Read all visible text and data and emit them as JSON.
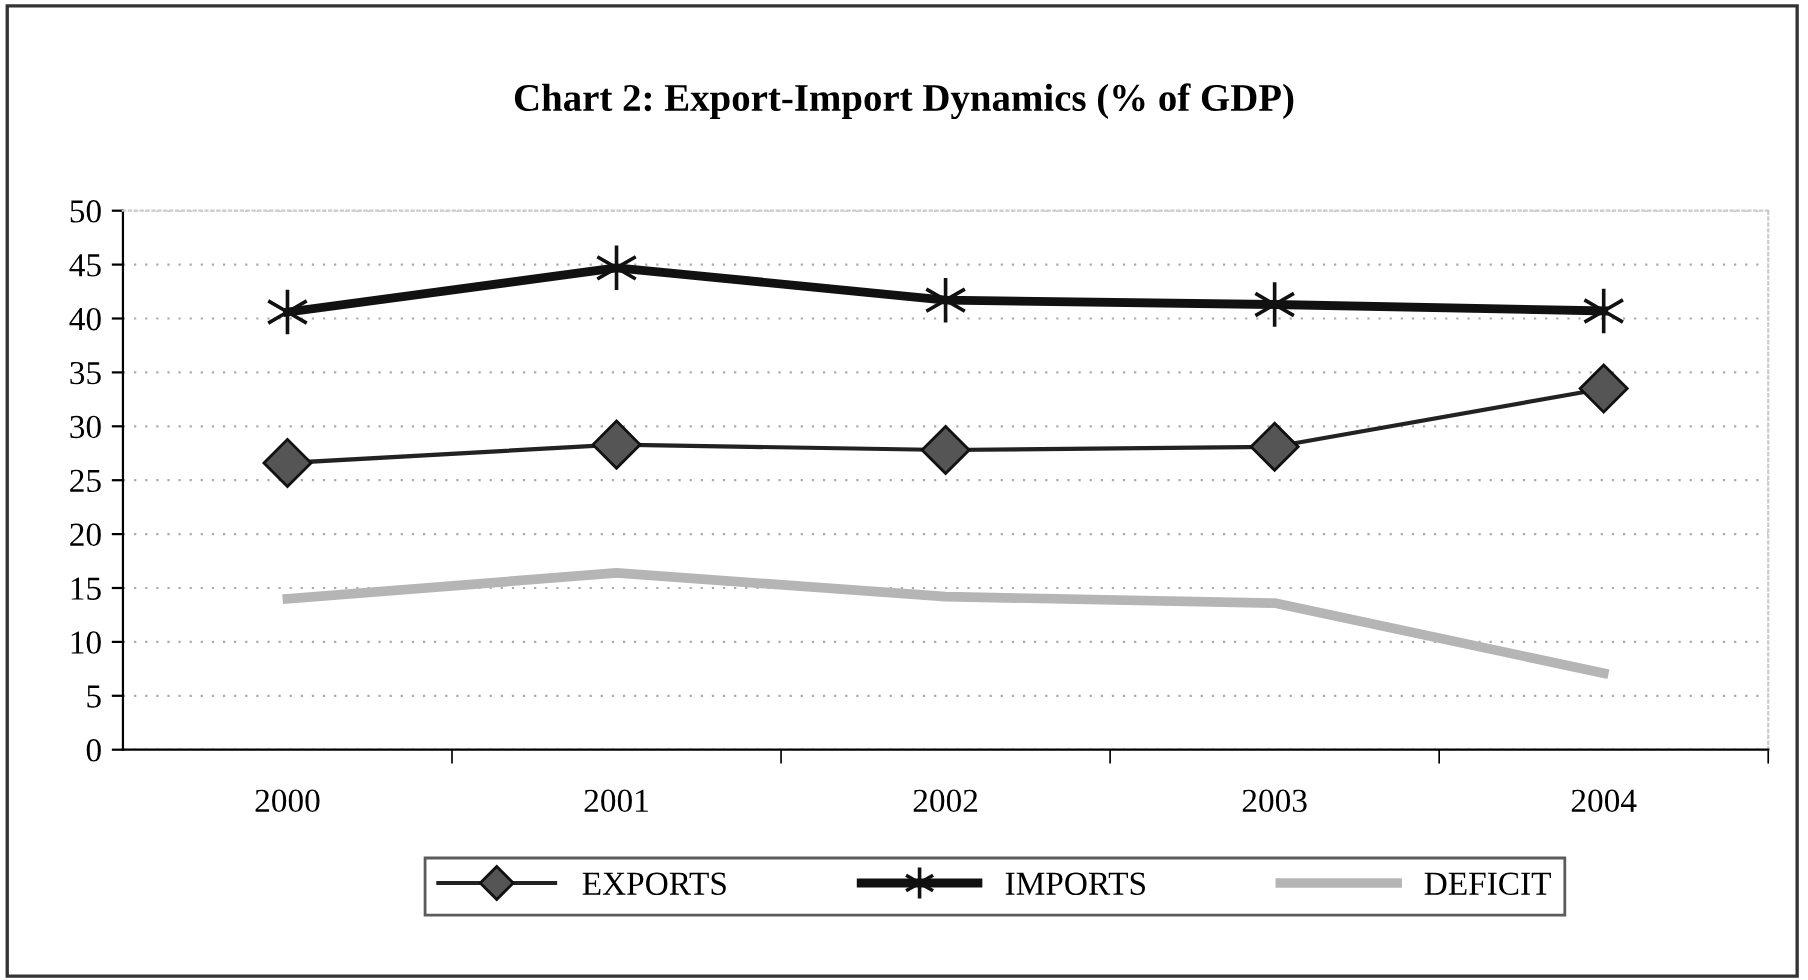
{
  "chart_data": {
    "type": "line",
    "title": "Chart 2: Export-Import Dynamics (% of GDP)",
    "categories": [
      "2000",
      "2001",
      "2002",
      "2003",
      "2004"
    ],
    "series": [
      {
        "name": "EXPORTS",
        "color": "#222222",
        "marker": "diamond",
        "values": [
          26.6,
          28.3,
          27.8,
          28.1,
          33.5
        ]
      },
      {
        "name": "IMPORTS",
        "color": "#111111",
        "marker": "cross",
        "values": [
          40.6,
          44.7,
          41.7,
          41.3,
          40.7
        ]
      },
      {
        "name": "DEFICIT",
        "color": "#b5b5b5",
        "marker": "none",
        "values": [
          14.0,
          16.4,
          14.2,
          13.6,
          7.1
        ]
      }
    ],
    "ylim": [
      0,
      50
    ],
    "yticks": [
      0,
      5,
      10,
      15,
      20,
      25,
      30,
      35,
      40,
      45,
      50
    ],
    "grid": "y",
    "legend": "bottom"
  }
}
